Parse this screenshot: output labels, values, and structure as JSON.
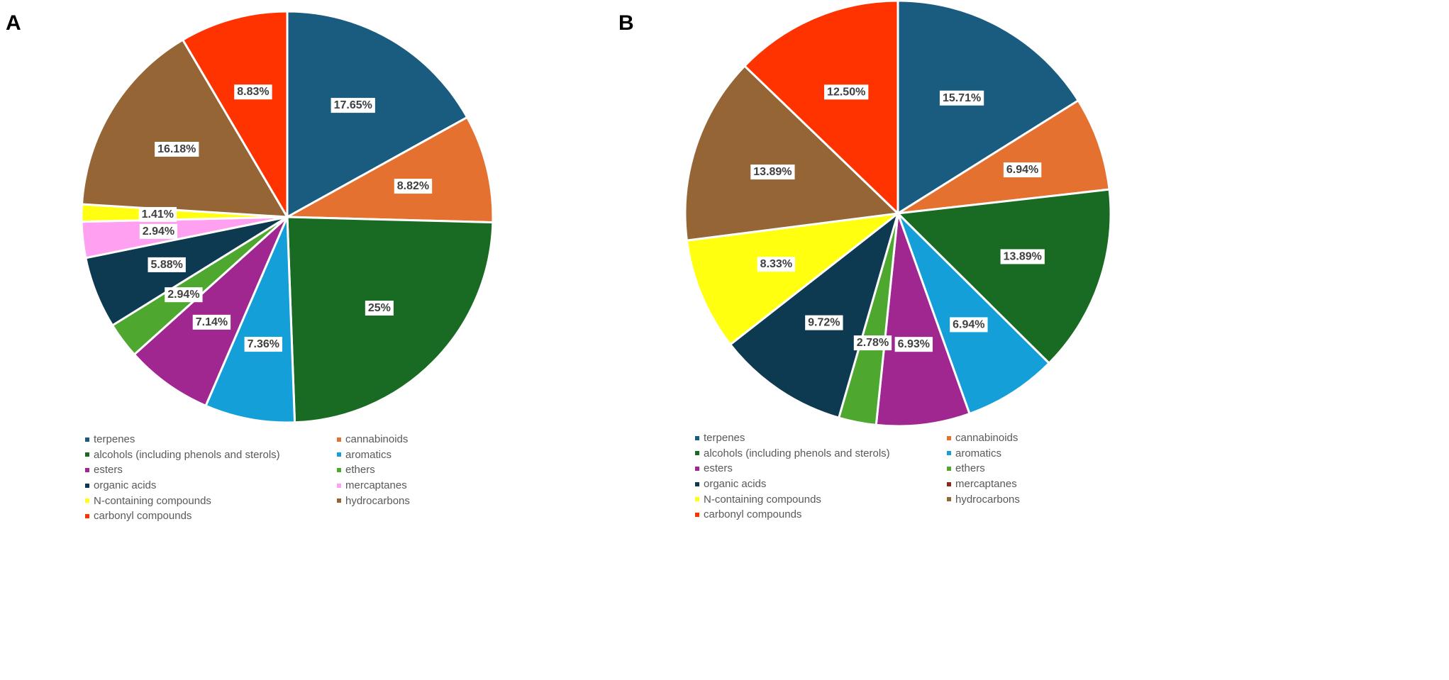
{
  "chart_data": [
    {
      "panel_label": "A",
      "type": "pie",
      "categories": [
        "terpenes",
        "cannabinoids",
        "alcohols (including phenols and sterols)",
        "aromatics",
        "esters",
        "ethers",
        "organic acids",
        "mercaptanes",
        "N-containing compounds",
        "hydrocarbons",
        "carbonyl compounds"
      ],
      "values": [
        17.65,
        8.82,
        25,
        7.36,
        7.14,
        2.94,
        5.88,
        2.94,
        1.41,
        16.18,
        8.83
      ],
      "labels": [
        "17.65%",
        "8.82%",
        "25%",
        "7.36%",
        "7.14%",
        "2.94%",
        "5.88%",
        "2.94%",
        "1.41%",
        "16.18%",
        "8.83%"
      ],
      "colors": [
        "#1a5b80",
        "#e57131",
        "#196b24",
        "#149fd8",
        "#a0278f",
        "#4ea72e",
        "#0e3a51",
        "#ffa0f0",
        "#ffff0f",
        "#956535",
        "#ff3300"
      ],
      "legend": [
        "terpenes",
        "cannabinoids",
        "alcohols (including phenols and sterols)",
        "aromatics",
        "esters",
        "ethers",
        "organic acids",
        "mercaptanes",
        "N-containing compounds",
        "hydrocarbons",
        "carbonyl compounds"
      ],
      "legend_colors": [
        "#1a5b80",
        "#e57131",
        "#196b24",
        "#149fd8",
        "#a0278f",
        "#4ea72e",
        "#0e3a51",
        "#ffa0f0",
        "#ffff0f",
        "#956535",
        "#ff3300"
      ],
      "legend_position": "bottom"
    },
    {
      "panel_label": "B",
      "type": "pie",
      "categories": [
        "terpenes",
        "cannabinoids",
        "alcohols (including phenols and sterols)",
        "aromatics",
        "esters",
        "ethers",
        "organic acids",
        "N-containing compounds",
        "hydrocarbons",
        "carbonyl compounds"
      ],
      "values": [
        15.71,
        6.94,
        13.89,
        6.94,
        6.93,
        2.78,
        9.72,
        8.33,
        13.89,
        12.5
      ],
      "labels": [
        "15.71%",
        "6.94%",
        "13.89%",
        "6.94%",
        "6.93%",
        "2.78%",
        "9.72%",
        "8.33%",
        "13.89%",
        "12.50%"
      ],
      "colors": [
        "#1a5b80",
        "#e57131",
        "#196b24",
        "#149fd8",
        "#a0278f",
        "#4ea72e",
        "#0e3a51",
        "#ffff0f",
        "#956535",
        "#ff3300"
      ],
      "legend": [
        "terpenes",
        "cannabinoids",
        "alcohols (including phenols and sterols)",
        "aromatics",
        "esters",
        "ethers",
        "organic acids",
        "mercaptanes",
        "N-containing compounds",
        "hydrocarbons",
        "carbonyl compounds"
      ],
      "legend_colors": [
        "#1a5b80",
        "#e57131",
        "#196b24",
        "#149fd8",
        "#a0278f",
        "#4ea72e",
        "#0e3a51",
        "#8b2a1a",
        "#ffff0f",
        "#956535",
        "#ff3300"
      ],
      "legend_position": "bottom"
    }
  ]
}
